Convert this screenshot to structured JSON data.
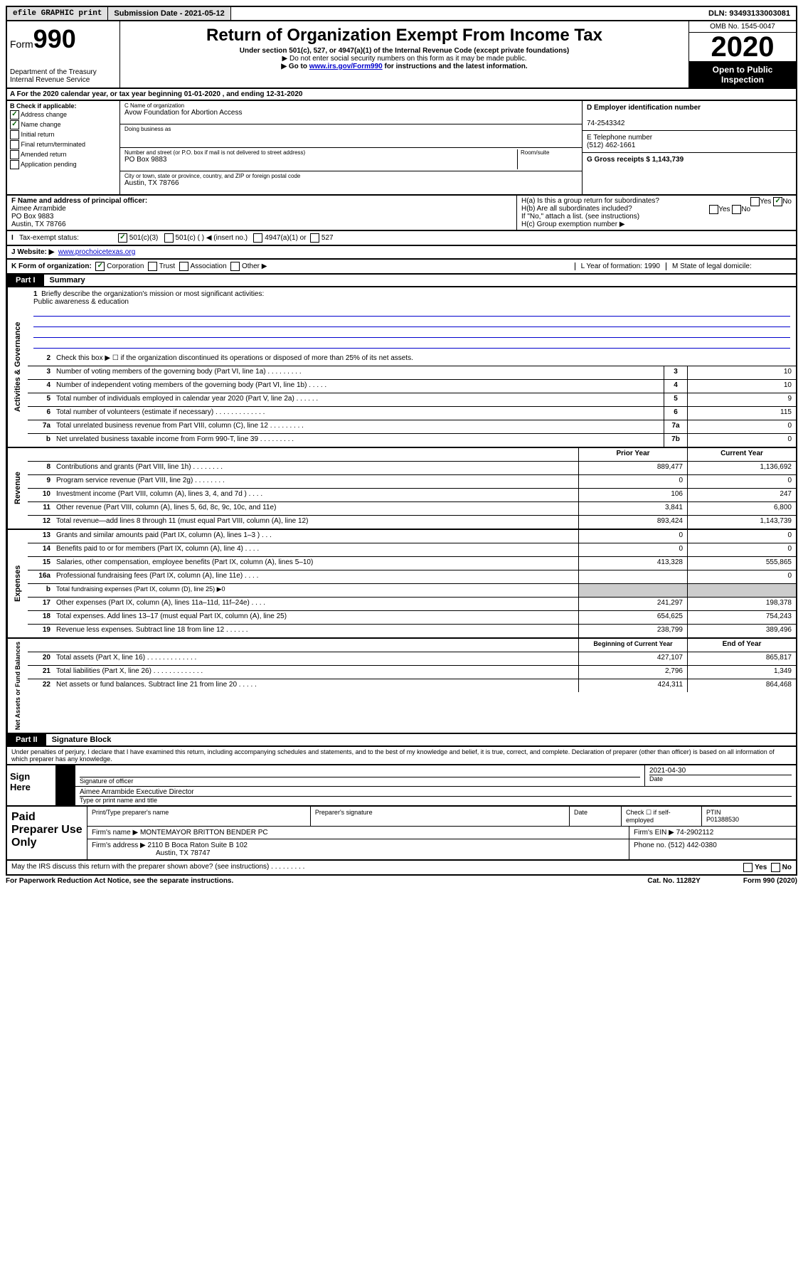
{
  "topbar": {
    "efile": "efile GRAPHIC print",
    "submission": "Submission Date - 2021-05-12",
    "dln": "DLN: 93493133003081"
  },
  "header": {
    "form_label": "Form",
    "form_num": "990",
    "dept": "Department of the Treasury",
    "irs": "Internal Revenue Service",
    "title": "Return of Organization Exempt From Income Tax",
    "subtitle": "Under section 501(c), 527, or 4947(a)(1) of the Internal Revenue Code (except private foundations)",
    "note1": "▶ Do not enter social security numbers on this form as it may be made public.",
    "note2_pre": "▶ Go to ",
    "note2_link": "www.irs.gov/Form990",
    "note2_post": " for instructions and the latest information.",
    "omb": "OMB No. 1545-0047",
    "year": "2020",
    "open": "Open to Public Inspection"
  },
  "section_a": "A For the 2020 calendar year, or tax year beginning 01-01-2020   , and ending 12-31-2020",
  "col_b": {
    "header": "B Check if applicable:",
    "items": [
      "Address change",
      "Name change",
      "Initial return",
      "Final return/terminated",
      "Amended return",
      "Application pending"
    ],
    "checked": [
      true,
      true,
      false,
      false,
      false,
      false
    ]
  },
  "col_c": {
    "name_lbl": "C Name of organization",
    "name": "Avow Foundation for Abortion Access",
    "dba_lbl": "Doing business as",
    "addr_lbl": "Number and street (or P.O. box if mail is not delivered to street address)",
    "room_lbl": "Room/suite",
    "addr": "PO Box 9883",
    "city_lbl": "City or town, state or province, country, and ZIP or foreign postal code",
    "city": "Austin, TX  78766"
  },
  "col_d": {
    "ein_lbl": "D Employer identification number",
    "ein": "74-2543342",
    "phone_lbl": "E Telephone number",
    "phone": "(512) 462-1661",
    "gross_lbl": "G Gross receipts $ 1,143,739"
  },
  "fgh": {
    "f_lbl": "F  Name and address of principal officer:",
    "f_name": "Aimee Arrambide",
    "f_addr1": "PO Box 9883",
    "f_addr2": "Austin, TX  78766",
    "ha": "H(a)  Is this a group return for subordinates?",
    "hb": "H(b)  Are all subordinates included?",
    "hb_note": "If \"No,\" attach a list. (see instructions)",
    "hc": "H(c)  Group exemption number ▶"
  },
  "line_i": {
    "label": "Tax-exempt status:",
    "opt1": "501(c)(3)",
    "opt2": "501(c) (   ) ◀ (insert no.)",
    "opt3": "4947(a)(1) or",
    "opt4": "527"
  },
  "line_j": {
    "label": "J   Website: ▶",
    "url": "www.prochoicetexas.org"
  },
  "line_k": {
    "label": "K Form of organization:",
    "corp": "Corporation",
    "trust": "Trust",
    "assoc": "Association",
    "other": "Other ▶",
    "l": "L Year of formation: 1990",
    "m": "M State of legal domicile:"
  },
  "part1": {
    "tab": "Part I",
    "title": "Summary"
  },
  "governance": {
    "label": "Activities & Governance",
    "q1": "Briefly describe the organization's mission or most significant activities:",
    "q1_ans": "Public awareness & education",
    "q2": "Check this box ▶ ☐  if the organization discontinued its operations or disposed of more than 25% of its net assets.",
    "rows": [
      {
        "n": "3",
        "d": "Number of voting members of the governing body (Part VI, line 1a)   .    .    .    .    .    .    .    .    .",
        "b": "3",
        "v": "10"
      },
      {
        "n": "4",
        "d": "Number of independent voting members of the governing body (Part VI, line 1b)    .    .    .    .    .",
        "b": "4",
        "v": "10"
      },
      {
        "n": "5",
        "d": "Total number of individuals employed in calendar year 2020 (Part V, line 2a)   .    .    .    .    .    .",
        "b": "5",
        "v": "9"
      },
      {
        "n": "6",
        "d": "Total number of volunteers (estimate if necessary)    .    .    .    .    .    .    .    .    .    .    .    .    .",
        "b": "6",
        "v": "115"
      },
      {
        "n": "7a",
        "d": "Total unrelated business revenue from Part VIII, column (C), line 12   .    .    .    .    .    .    .    .    .",
        "b": "7a",
        "v": "0"
      },
      {
        "n": "b",
        "d": "Net unrelated business taxable income from Form 990-T, line 39   .    .    .    .    .    .    .    .    .",
        "b": "7b",
        "v": "0"
      }
    ]
  },
  "revenue": {
    "label": "Revenue",
    "hdr_prior": "Prior Year",
    "hdr_current": "Current Year",
    "rows": [
      {
        "n": "8",
        "d": "Contributions and grants (Part VIII, line 1h)   .    .    .    .    .    .    .    .",
        "p": "889,477",
        "c": "1,136,692"
      },
      {
        "n": "9",
        "d": "Program service revenue (Part VIII, line 2g)    .    .    .    .    .    .    .    .",
        "p": "0",
        "c": "0"
      },
      {
        "n": "10",
        "d": "Investment income (Part VIII, column (A), lines 3, 4, and 7d )   .    .    .    .",
        "p": "106",
        "c": "247"
      },
      {
        "n": "11",
        "d": "Other revenue (Part VIII, column (A), lines 5, 6d, 8c, 9c, 10c, and 11e)",
        "p": "3,841",
        "c": "6,800"
      },
      {
        "n": "12",
        "d": "Total revenue—add lines 8 through 11 (must equal Part VIII, column (A), line 12)",
        "p": "893,424",
        "c": "1,143,739"
      }
    ]
  },
  "expenses": {
    "label": "Expenses",
    "rows": [
      {
        "n": "13",
        "d": "Grants and similar amounts paid (Part IX, column (A), lines 1–3 )   .    .    .",
        "p": "0",
        "c": "0"
      },
      {
        "n": "14",
        "d": "Benefits paid to or for members (Part IX, column (A), line 4)   .    .    .    .",
        "p": "0",
        "c": "0"
      },
      {
        "n": "15",
        "d": "Salaries, other compensation, employee benefits (Part IX, column (A), lines 5–10)",
        "p": "413,328",
        "c": "555,865"
      },
      {
        "n": "16a",
        "d": "Professional fundraising fees (Part IX, column (A), line 11e)    .    .    .    .",
        "p": "",
        "c": "0"
      },
      {
        "n": "b",
        "d": "Total fundraising expenses (Part IX, column (D), line 25) ▶0",
        "p": "",
        "c": "",
        "noval": true
      },
      {
        "n": "17",
        "d": "Other expenses (Part IX, column (A), lines 11a–11d, 11f–24e)    .    .    .    .",
        "p": "241,297",
        "c": "198,378"
      },
      {
        "n": "18",
        "d": "Total expenses. Add lines 13–17 (must equal Part IX, column (A), line 25)",
        "p": "654,625",
        "c": "754,243"
      },
      {
        "n": "19",
        "d": "Revenue less expenses. Subtract line 18 from line 12   .    .    .    .    .    .",
        "p": "238,799",
        "c": "389,496"
      }
    ]
  },
  "netassets": {
    "label": "Net Assets or Fund Balances",
    "hdr_begin": "Beginning of Current Year",
    "hdr_end": "End of Year",
    "rows": [
      {
        "n": "20",
        "d": "Total assets (Part X, line 16)   .    .    .    .    .    .    .    .    .    .    .    .    .",
        "p": "427,107",
        "c": "865,817"
      },
      {
        "n": "21",
        "d": "Total liabilities (Part X, line 26)   .    .    .    .    .    .    .    .    .    .    .    .    .",
        "p": "2,796",
        "c": "1,349"
      },
      {
        "n": "22",
        "d": "Net assets or fund balances. Subtract line 21 from line 20   .    .    .    .    .",
        "p": "424,311",
        "c": "864,468"
      }
    ]
  },
  "part2": {
    "tab": "Part II",
    "title": "Signature Block"
  },
  "perjury": "Under penalties of perjury, I declare that I have examined this return, including accompanying schedules and statements, and to the best of my knowledge and belief, it is true, correct, and complete. Declaration of preparer (other than officer) is based on all information of which preparer has any knowledge.",
  "sign": {
    "label": "Sign Here",
    "sig_lbl": "Signature of officer",
    "date": "2021-04-30",
    "date_lbl": "Date",
    "name": "Aimee Arrambide  Executive Director",
    "name_lbl": "Type or print name and title"
  },
  "paid": {
    "label": "Paid Preparer Use Only",
    "h1": "Print/Type preparer's name",
    "h2": "Preparer's signature",
    "h3": "Date",
    "h4_pre": "Check ☐ if self-employed",
    "h5": "PTIN",
    "ptin": "P01388530",
    "firm_lbl": "Firm's name    ▶",
    "firm": "MONTEMAYOR BRITTON BENDER PC",
    "ein_lbl": "Firm's EIN ▶",
    "ein": "74-2902112",
    "addr_lbl": "Firm's address ▶",
    "addr1": "2110 B Boca Raton Suite B 102",
    "addr2": "Austin, TX  78747",
    "phone_lbl": "Phone no.",
    "phone": "(512) 442-0380"
  },
  "discuss": "May the IRS discuss this return with the preparer shown above? (see instructions)    .    .    .    .    .    .    .    .    .",
  "footer": {
    "left": "For Paperwork Reduction Act Notice, see the separate instructions.",
    "mid": "Cat. No. 11282Y",
    "right": "Form 990 (2020)"
  }
}
